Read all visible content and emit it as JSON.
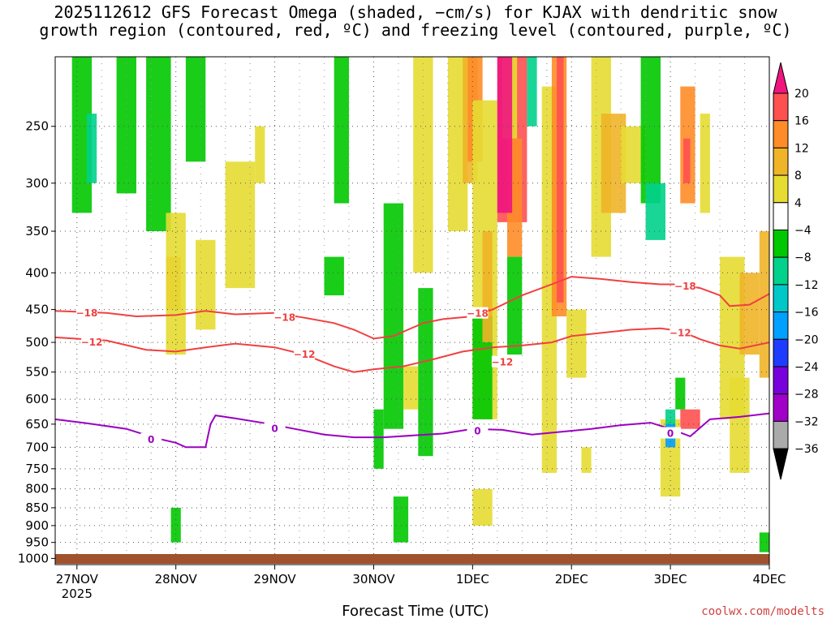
{
  "chart_data": {
    "type": "heatmap",
    "title": "2025112612 GFS Forecast Omega (shaded, −cm/s) for KJAX with dendritic snow growth region (contoured, red, ºC) and freezing level (contoured, purple, ºC)",
    "title_lines": [
      "2025112612 GFS Forecast Omega (shaded, −cm/s) for KJAX with dendritic snow",
      "growth region (contoured, red, ºC) and freezing level (contoured, purple, ºC)"
    ],
    "xlabel": "Forecast Time (UTC)",
    "ylabel": "",
    "credit": "coolwx.com/modelts",
    "x_ticks": [
      {
        "label": "27NOV",
        "sub": "2025",
        "t": 0
      },
      {
        "label": "28NOV",
        "sub": "",
        "t": 1
      },
      {
        "label": "29NOV",
        "sub": "",
        "t": 2
      },
      {
        "label": "30NOV",
        "sub": "",
        "t": 3
      },
      {
        "label": "1DEC",
        "sub": "",
        "t": 4
      },
      {
        "label": "2DEC",
        "sub": "",
        "t": 5
      },
      {
        "label": "3DEC",
        "sub": "",
        "t": 6
      },
      {
        "label": "4DEC",
        "sub": "",
        "t": 7
      }
    ],
    "x_range_days": [
      -0.22,
      7.0
    ],
    "y_ticks": [
      250,
      300,
      350,
      400,
      450,
      500,
      550,
      600,
      650,
      700,
      750,
      800,
      850,
      900,
      950,
      1000
    ],
    "y_range_hpa": [
      200,
      1020
    ],
    "y_scale": "log-pressure",
    "grid": true,
    "colorbar": {
      "ticks": [
        "20",
        "16",
        "12",
        "8",
        "4",
        "−4",
        "−8",
        "−12",
        "−16",
        "−20",
        "−24",
        "−28",
        "−32",
        "−36"
      ],
      "bands": [
        "#ff5050",
        "#ff8c28",
        "#f0b428",
        "#e6dc32",
        "#ffffff",
        "#00c800",
        "#00d28c",
        "#00c8c8",
        "#00a0ff",
        "#1e3cff",
        "#7800dc",
        "#a000c8",
        "#aaaaaa"
      ],
      "top_color": "#f0147f",
      "bottom_color": "#000000"
    },
    "contours": [
      {
        "label": "−18",
        "color": "#f04040",
        "points": [
          [
            -0.22,
            452
          ],
          [
            0.3,
            455
          ],
          [
            0.6,
            460
          ],
          [
            1.0,
            458
          ],
          [
            1.3,
            452
          ],
          [
            1.6,
            457
          ],
          [
            2.0,
            455
          ],
          [
            2.3,
            462
          ],
          [
            2.6,
            470
          ],
          [
            2.8,
            480
          ],
          [
            3.0,
            494
          ],
          [
            3.2,
            490
          ],
          [
            3.5,
            470
          ],
          [
            3.7,
            464
          ],
          [
            4.0,
            460
          ],
          [
            4.2,
            450
          ],
          [
            4.5,
            430
          ],
          [
            4.8,
            415
          ],
          [
            5.0,
            405
          ],
          [
            5.3,
            408
          ],
          [
            5.6,
            412
          ],
          [
            5.9,
            415
          ],
          [
            6.1,
            415
          ],
          [
            6.3,
            420
          ],
          [
            6.5,
            430
          ],
          [
            6.6,
            445
          ],
          [
            6.8,
            443
          ],
          [
            7.0,
            428
          ]
        ],
        "labels": [
          [
            0.1,
            455
          ],
          [
            2.1,
            462
          ],
          [
            4.05,
            456
          ],
          [
            6.15,
            418
          ]
        ]
      },
      {
        "label": "−12",
        "color": "#f04040",
        "points": [
          [
            -0.22,
            492
          ],
          [
            0.3,
            497
          ],
          [
            0.7,
            512
          ],
          [
            1.0,
            515
          ],
          [
            1.3,
            508
          ],
          [
            1.6,
            502
          ],
          [
            2.0,
            508
          ],
          [
            2.3,
            520
          ],
          [
            2.6,
            540
          ],
          [
            2.8,
            550
          ],
          [
            3.0,
            545
          ],
          [
            3.3,
            540
          ],
          [
            3.6,
            528
          ],
          [
            3.9,
            515
          ],
          [
            4.2,
            508
          ],
          [
            4.5,
            505
          ],
          [
            4.8,
            500
          ],
          [
            5.0,
            490
          ],
          [
            5.3,
            485
          ],
          [
            5.6,
            480
          ],
          [
            5.9,
            478
          ],
          [
            6.1,
            482
          ],
          [
            6.3,
            495
          ],
          [
            6.5,
            505
          ],
          [
            6.7,
            510
          ],
          [
            7.0,
            500
          ]
        ],
        "labels": [
          [
            0.15,
            500
          ],
          [
            2.3,
            520
          ],
          [
            4.3,
            533
          ],
          [
            6.1,
            485
          ]
        ]
      },
      {
        "label": "0",
        "color": "#9b00c0",
        "points": [
          [
            -0.22,
            640
          ],
          [
            0.1,
            648
          ],
          [
            0.5,
            660
          ],
          [
            0.8,
            680
          ],
          [
            1.0,
            690
          ],
          [
            1.1,
            700
          ],
          [
            1.3,
            700
          ],
          [
            1.35,
            650
          ],
          [
            1.4,
            632
          ],
          [
            1.6,
            638
          ],
          [
            1.9,
            648
          ],
          [
            2.2,
            660
          ],
          [
            2.5,
            672
          ],
          [
            2.8,
            678
          ],
          [
            3.1,
            678
          ],
          [
            3.4,
            674
          ],
          [
            3.7,
            670
          ],
          [
            4.0,
            660
          ],
          [
            4.3,
            662
          ],
          [
            4.6,
            672
          ],
          [
            4.9,
            666
          ],
          [
            5.2,
            660
          ],
          [
            5.5,
            652
          ],
          [
            5.8,
            647
          ],
          [
            6.0,
            660
          ],
          [
            6.2,
            676
          ],
          [
            6.4,
            640
          ],
          [
            6.7,
            635
          ],
          [
            7.0,
            628
          ]
        ],
        "labels": [
          [
            0.75,
            683
          ],
          [
            2.0,
            660
          ],
          [
            4.05,
            665
          ],
          [
            6.0,
            670
          ]
        ]
      }
    ]
  }
}
